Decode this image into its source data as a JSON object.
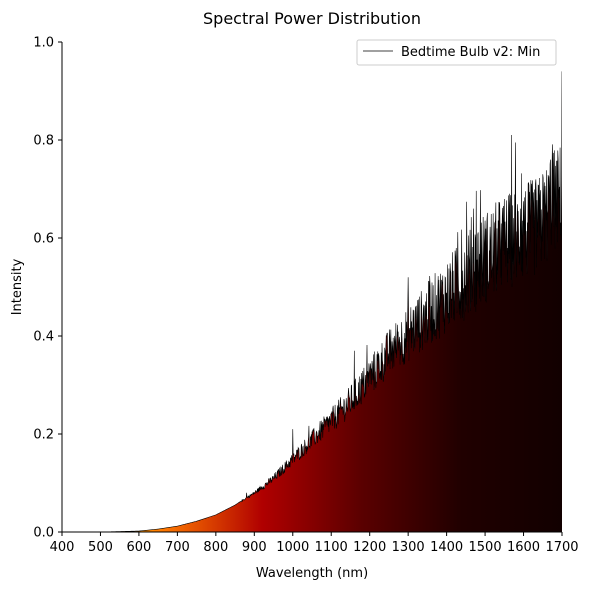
{
  "chart_data": {
    "type": "area",
    "title": "Spectral Power Distribution",
    "xlabel": "Wavelength (nm)",
    "ylabel": "Intensity",
    "xlim": [
      400,
      1700
    ],
    "ylim": [
      0.0,
      1.0
    ],
    "xticks": [
      400,
      500,
      600,
      700,
      800,
      900,
      1000,
      1100,
      1200,
      1300,
      1400,
      1500,
      1600,
      1700
    ],
    "yticks": [
      0.0,
      0.2,
      0.4,
      0.6,
      0.8,
      1.0
    ],
    "grid": false,
    "legend_position": "top-right",
    "series": [
      {
        "name": "Bedtime Bulb v2: Min",
        "color": "#000000",
        "x": [
          400,
          500,
          600,
          650,
          700,
          750,
          800,
          850,
          880,
          900,
          950,
          1000,
          1050,
          1100,
          1150,
          1200,
          1250,
          1300,
          1350,
          1400,
          1450,
          1500,
          1550,
          1600,
          1650,
          1670,
          1700
        ],
        "y": [
          0.0,
          0.0,
          0.002,
          0.006,
          0.012,
          0.022,
          0.035,
          0.055,
          0.07,
          0.08,
          0.11,
          0.15,
          0.19,
          0.23,
          0.27,
          0.32,
          0.37,
          0.41,
          0.45,
          0.49,
          0.53,
          0.57,
          0.6,
          0.62,
          0.64,
          0.68,
          0.7
        ],
        "noise_peaks": [
          {
            "x": 880,
            "y": 0.08
          },
          {
            "x": 1000,
            "y": 0.21
          },
          {
            "x": 1160,
            "y": 0.37
          },
          {
            "x": 1300,
            "y": 0.52
          },
          {
            "x": 1470,
            "y": 0.66
          },
          {
            "x": 1650,
            "y": 0.73
          },
          {
            "x": 1670,
            "y": 0.76
          },
          {
            "x": 1700,
            "y": 0.94
          }
        ]
      }
    ],
    "fill_gradient": [
      "#ffe000",
      "#ff7a00",
      "#b00000",
      "#5a0000",
      "#200000",
      "#120000"
    ]
  }
}
